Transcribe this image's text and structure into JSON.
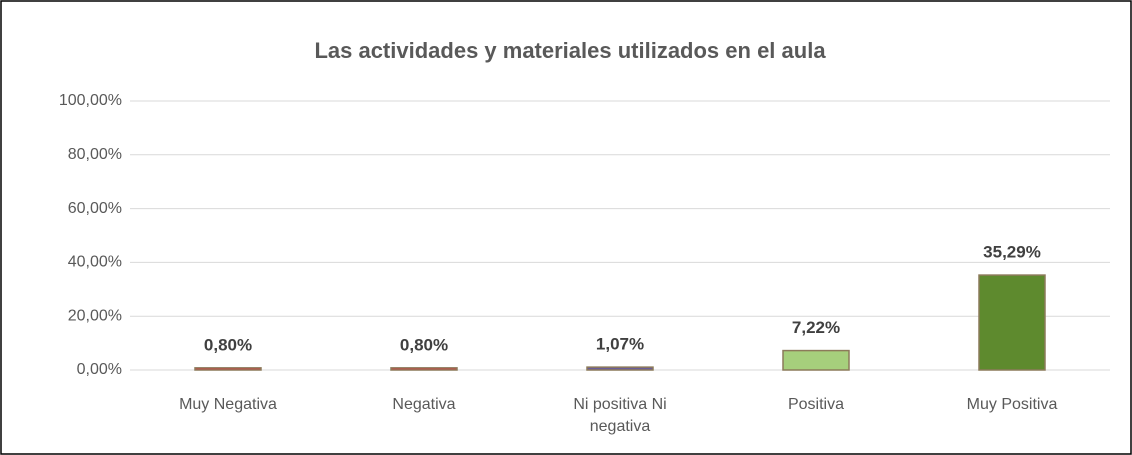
{
  "chart_data": {
    "type": "bar",
    "title": "Las actividades y materiales utilizados en el aula",
    "categories": [
      "Muy Negativa",
      "Negativa",
      "Ni positiva Ni negativa",
      "Positiva",
      "Muy Positiva"
    ],
    "values": [
      0.8,
      0.8,
      1.07,
      7.22,
      35.29
    ],
    "value_labels": [
      "0,80%",
      "0,80%",
      "1,07%",
      "7,22%",
      "35,29%"
    ],
    "colors": [
      "#d9363e",
      "#d9363e",
      "#6a5d9a",
      "#a6cf7c",
      "#5e8a2e"
    ],
    "ylim": [
      0,
      100
    ],
    "yticks": [
      {
        "value": 0,
        "label": "0,00%"
      },
      {
        "value": 20,
        "label": "20,00%"
      },
      {
        "value": 40,
        "label": "40,00%"
      },
      {
        "value": 60,
        "label": "60,00%"
      },
      {
        "value": 80,
        "label": "80,00%"
      },
      {
        "value": 100,
        "label": "100,00%"
      }
    ],
    "grid": true
  }
}
